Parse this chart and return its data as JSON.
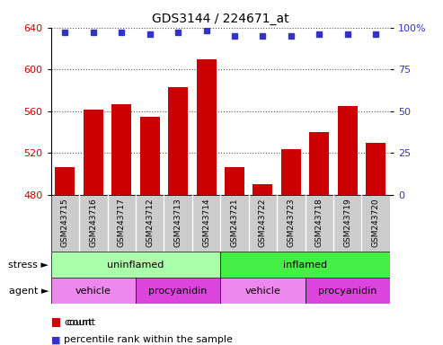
{
  "title": "GDS3144 / 224671_at",
  "samples": [
    "GSM243715",
    "GSM243716",
    "GSM243717",
    "GSM243712",
    "GSM243713",
    "GSM243714",
    "GSM243721",
    "GSM243722",
    "GSM243723",
    "GSM243718",
    "GSM243719",
    "GSM243720"
  ],
  "counts": [
    507,
    562,
    567,
    555,
    583,
    610,
    507,
    490,
    524,
    540,
    565,
    530
  ],
  "percentile_ranks": [
    97,
    97,
    97,
    96,
    97,
    98,
    95,
    95,
    95,
    96,
    96,
    96
  ],
  "ymin": 480,
  "ymax": 640,
  "yticks": [
    480,
    520,
    560,
    600,
    640
  ],
  "right_yticks": [
    0,
    25,
    50,
    75,
    100
  ],
  "bar_color": "#cc0000",
  "dot_color": "#3333cc",
  "stress_uninflamed_color": "#aaffaa",
  "stress_inflamed_color": "#44ee44",
  "agent_vehicle_color": "#ee88ee",
  "agent_procyanidin_color": "#dd44dd",
  "stress_labels": [
    [
      "uninflamed",
      0,
      6
    ],
    [
      "inflamed",
      6,
      12
    ]
  ],
  "agent_labels": [
    [
      "vehicle",
      0,
      3
    ],
    [
      "procyanidin",
      3,
      6
    ],
    [
      "vehicle",
      6,
      9
    ],
    [
      "procyanidin",
      9,
      12
    ]
  ],
  "grid_color": "#555555",
  "bg_color": "#ffffff",
  "tick_bg_color": "#cccccc"
}
